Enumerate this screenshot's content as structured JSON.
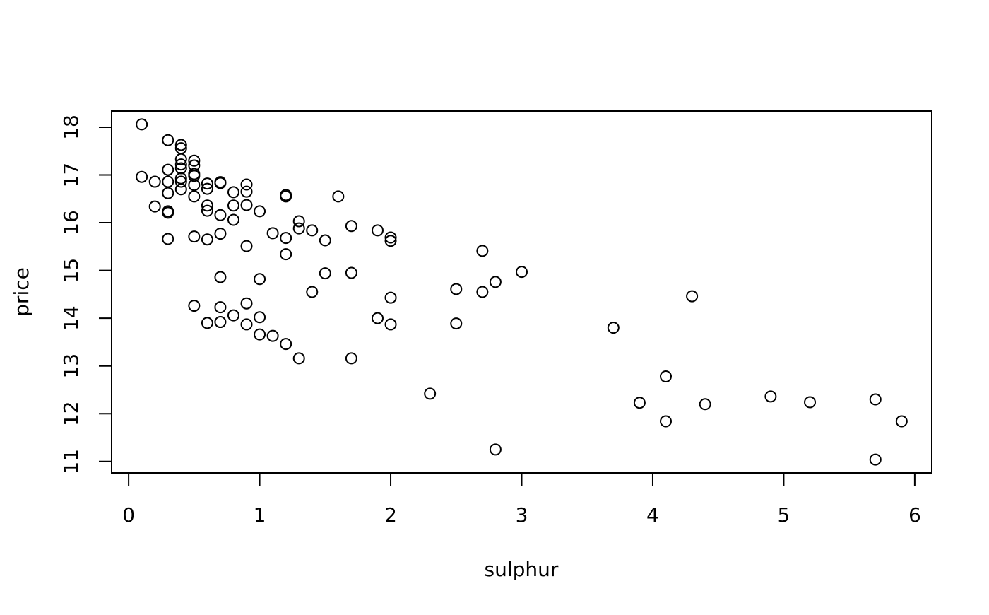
{
  "chart_data": {
    "type": "scatter",
    "x_label": "sulphur",
    "y_label": "price",
    "x": [
      0.1,
      0.1,
      0.2,
      0.2,
      0.3,
      0.3,
      0.3,
      0.3,
      0.3,
      0.3,
      0.3,
      0.4,
      0.4,
      0.4,
      0.4,
      0.4,
      0.4,
      0.4,
      0.4,
      0.5,
      0.5,
      0.5,
      0.5,
      0.5,
      0.5,
      0.5,
      0.5,
      0.6,
      0.6,
      0.6,
      0.6,
      0.6,
      0.6,
      0.7,
      0.7,
      0.7,
      0.7,
      0.7,
      0.7,
      0.7,
      0.8,
      0.8,
      0.8,
      0.8,
      0.9,
      0.9,
      0.9,
      0.9,
      0.9,
      0.9,
      1.0,
      1.0,
      1.0,
      1.0,
      1.1,
      1.1,
      1.2,
      1.2,
      1.2,
      1.2,
      1.2,
      1.3,
      1.3,
      1.3,
      1.4,
      1.4,
      1.5,
      1.5,
      1.6,
      1.7,
      1.7,
      1.7,
      1.9,
      1.9,
      2.0,
      2.0,
      2.0,
      2.0,
      2.3,
      2.5,
      2.5,
      2.7,
      2.7,
      2.8,
      2.8,
      3.0,
      3.7,
      3.9,
      4.1,
      4.1,
      4.3,
      4.4,
      4.9,
      5.2,
      5.7,
      5.7,
      5.9
    ],
    "values": [
      18.06,
      16.96,
      16.86,
      16.34,
      17.73,
      17.11,
      16.86,
      16.62,
      16.24,
      16.21,
      15.66,
      17.63,
      17.56,
      17.33,
      17.22,
      17.14,
      16.93,
      16.86,
      16.7,
      17.3,
      17.2,
      17.02,
      16.98,
      16.79,
      16.55,
      15.71,
      14.26,
      16.82,
      16.71,
      16.36,
      16.25,
      15.65,
      13.9,
      16.85,
      16.83,
      16.16,
      15.77,
      14.86,
      14.23,
      13.92,
      16.64,
      16.36,
      16.06,
      14.06,
      16.8,
      16.65,
      16.37,
      15.51,
      14.31,
      13.87,
      16.24,
      14.82,
      14.02,
      13.66,
      15.78,
      13.63,
      16.58,
      16.55,
      15.68,
      15.34,
      13.46,
      16.03,
      15.88,
      13.16,
      15.84,
      14.55,
      15.63,
      14.94,
      16.55,
      15.93,
      14.95,
      13.16,
      15.84,
      14.0,
      15.69,
      15.62,
      14.43,
      13.87,
      12.42,
      14.61,
      13.89,
      15.41,
      14.55,
      14.76,
      11.25,
      14.97,
      13.8,
      12.23,
      12.78,
      11.84,
      14.46,
      12.2,
      12.36,
      12.24,
      12.3,
      11.04,
      11.84
    ],
    "color": "#000000",
    "xlim": [
      -0.13,
      6.13
    ],
    "xticks": [
      0,
      1,
      2,
      3,
      4,
      5,
      6
    ],
    "ylim": [
      10.76,
      18.34
    ],
    "yticks": [
      11,
      12,
      13,
      14,
      15,
      16,
      17,
      18
    ]
  }
}
